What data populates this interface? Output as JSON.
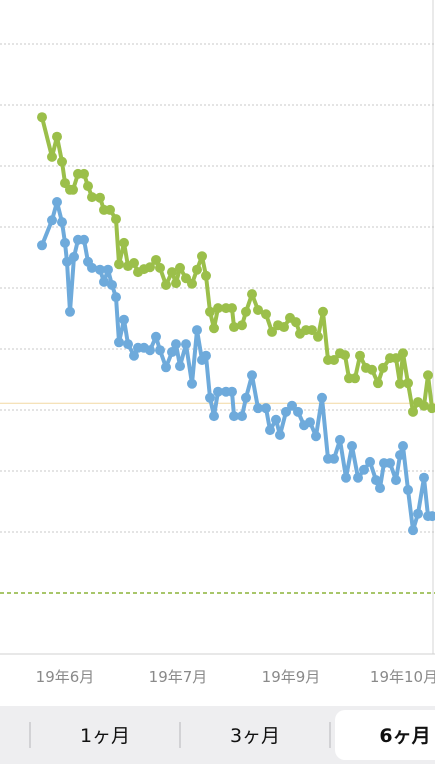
{
  "chart_data": {
    "type": "line",
    "xlim": [
      0,
      435
    ],
    "ylim": [
      0,
      10.7
    ],
    "xticks": [
      {
        "value": 65,
        "label": "19年6月"
      },
      {
        "value": 178,
        "label": "19年7月"
      },
      {
        "value": 291,
        "label": "19年9月"
      },
      {
        "value": 404,
        "label": "19年10月"
      }
    ],
    "yticks": [
      0,
      2,
      3,
      4,
      5,
      6,
      7,
      8,
      9,
      10
    ],
    "grid": true,
    "reference_lines": [
      {
        "value": 4.11,
        "color": "#f2d8a2",
        "style": "solid"
      },
      {
        "value": 1,
        "color": "#a8c66a",
        "style": "dashed"
      }
    ],
    "series": [
      {
        "color": "#9bbf4a",
        "x": [
          42,
          52,
          57,
          62,
          65,
          70,
          73,
          78,
          84,
          88,
          92,
          100,
          104,
          110,
          116,
          119,
          124,
          128,
          134,
          138,
          144,
          150,
          156,
          160,
          166,
          172,
          176,
          180,
          186,
          192,
          197,
          202,
          206,
          210,
          214,
          218,
          226,
          232,
          234,
          242,
          246,
          252,
          258,
          266,
          272,
          278,
          284,
          290,
          296,
          300,
          306,
          312,
          318,
          323,
          328,
          334,
          340,
          345,
          349,
          355,
          360,
          366,
          372,
          378,
          383,
          390,
          396,
          400,
          403,
          408,
          413,
          418,
          424,
          428,
          432
        ],
        "values": [
          8.8,
          8.15,
          8.48,
          8.07,
          7.72,
          7.61,
          7.61,
          7.87,
          7.87,
          7.67,
          7.49,
          7.48,
          7.28,
          7.28,
          7.13,
          6.39,
          6.74,
          6.36,
          6.41,
          6.26,
          6.31,
          6.34,
          6.46,
          6.33,
          6.05,
          6.26,
          6.08,
          6.33,
          6.16,
          6.07,
          6.3,
          6.52,
          6.2,
          5.61,
          5.34,
          5.67,
          5.67,
          5.67,
          5.36,
          5.39,
          5.61,
          5.9,
          5.64,
          5.57,
          5.28,
          5.39,
          5.36,
          5.51,
          5.44,
          5.25,
          5.31,
          5.31,
          5.2,
          5.61,
          4.82,
          4.82,
          4.93,
          4.9,
          4.52,
          4.52,
          4.89,
          4.69,
          4.66,
          4.44,
          4.69,
          4.85,
          4.85,
          4.43,
          4.93,
          4.44,
          3.97,
          4.13,
          4.07,
          4.57,
          4.03
        ]
      },
      {
        "color": "#6eaadb",
        "x": [
          42,
          52,
          57,
          62,
          65,
          67,
          70,
          74,
          78,
          84,
          88,
          92,
          100,
          104,
          108,
          112,
          116,
          119,
          124,
          128,
          134,
          138,
          144,
          150,
          156,
          160,
          166,
          172,
          176,
          180,
          186,
          192,
          197,
          202,
          206,
          210,
          214,
          218,
          226,
          232,
          234,
          242,
          246,
          252,
          258,
          266,
          270,
          276,
          280,
          286,
          292,
          298,
          304,
          310,
          316,
          322,
          328,
          334,
          340,
          346,
          352,
          358,
          364,
          370,
          376,
          380,
          384,
          390,
          396,
          400,
          403,
          408,
          413,
          418,
          424,
          428,
          432
        ],
        "values": [
          6.7,
          7.11,
          7.41,
          7.08,
          6.74,
          6.43,
          5.61,
          6.51,
          6.79,
          6.79,
          6.43,
          6.33,
          6.3,
          6.1,
          6.3,
          6.05,
          5.85,
          5.11,
          5.48,
          5.08,
          4.89,
          5.02,
          5.02,
          4.98,
          5.2,
          4.98,
          4.7,
          4.95,
          5.08,
          4.72,
          5.08,
          4.43,
          5.31,
          4.82,
          4.89,
          4.2,
          3.9,
          4.3,
          4.3,
          4.3,
          3.9,
          3.9,
          4.2,
          4.57,
          4.03,
          4.03,
          3.67,
          3.84,
          3.59,
          3.97,
          4.07,
          3.97,
          3.75,
          3.8,
          3.57,
          4.2,
          3.2,
          3.2,
          3.51,
          2.89,
          3.41,
          2.89,
          3.02,
          3.15,
          2.85,
          2.72,
          3.13,
          3.13,
          2.85,
          3.26,
          3.41,
          2.69,
          2.03,
          2.3,
          2.89,
          2.26,
          2.26
        ]
      }
    ]
  },
  "tabs": {
    "labels": [
      "1ヶ月",
      "3ヶ月",
      "6ヶ月"
    ],
    "selected": 2
  }
}
